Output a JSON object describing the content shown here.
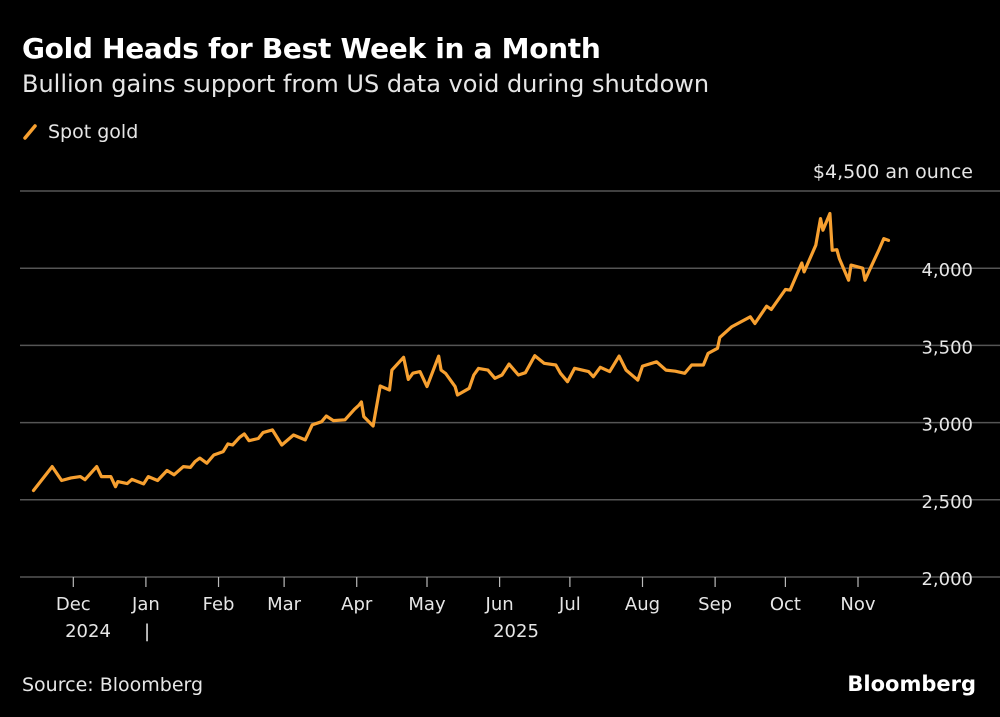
{
  "title": "Gold Heads for Best Week in a Month",
  "subtitle": "Bullion gains support from US data void during shutdown",
  "source": "Source: Bloomberg",
  "brand": "Bloomberg",
  "colors": {
    "line": "#f7a030",
    "grid": "#555555",
    "background": "#000000"
  },
  "chart_data": {
    "type": "line",
    "title": "Gold Heads for Best Week in a Month",
    "subtitle": "Bullion gains support from US data void during shutdown",
    "unit_label": "$4,500 an ounce",
    "ylim": [
      2000,
      4500
    ],
    "yticks": [
      2000,
      2500,
      3000,
      3500,
      4000,
      4500
    ],
    "ytick_labels": [
      "2,000",
      "2,500",
      "3,000",
      "3,500",
      "4,000",
      "$4,500 an ounce"
    ],
    "y_axis_position": "right",
    "grid": true,
    "legend": {
      "position": "top-left",
      "entries": [
        "Spot gold"
      ]
    },
    "xtick_dates": [
      "2024-12-01",
      "2025-01-01",
      "2025-02-01",
      "2025-03-01",
      "2025-04-01",
      "2025-05-01",
      "2025-06-01",
      "2025-07-01",
      "2025-08-01",
      "2025-09-01",
      "2025-10-01",
      "2025-11-01"
    ],
    "xtick_labels": [
      "Dec",
      "Jan",
      "Feb",
      "Mar",
      "Apr",
      "May",
      "Jun",
      "Jul",
      "Aug",
      "Sep",
      "Oct",
      "Nov"
    ],
    "year_labels": [
      "2024",
      "|",
      "2025"
    ],
    "series": [
      {
        "name": "Spot gold",
        "x": [
          "2024-11-14",
          "2024-11-22",
          "2024-11-26",
          "2024-11-30",
          "2024-12-04",
          "2024-12-06",
          "2024-12-11",
          "2024-12-13",
          "2024-12-17",
          "2024-12-19",
          "2024-12-20",
          "2024-12-24",
          "2024-12-26",
          "2024-12-31",
          "2025-01-02",
          "2025-01-06",
          "2025-01-10",
          "2025-01-13",
          "2025-01-17",
          "2025-01-20",
          "2025-01-22",
          "2025-01-24",
          "2025-01-27",
          "2025-01-30",
          "2025-02-03",
          "2025-02-05",
          "2025-02-07",
          "2025-02-10",
          "2025-02-12",
          "2025-02-14",
          "2025-02-18",
          "2025-02-20",
          "2025-02-24",
          "2025-02-28",
          "2025-03-05",
          "2025-03-10",
          "2025-03-13",
          "2025-03-17",
          "2025-03-19",
          "2025-03-22",
          "2025-03-27",
          "2025-03-31",
          "2025-04-02",
          "2025-04-03",
          "2025-04-04",
          "2025-04-08",
          "2025-04-11",
          "2025-04-15",
          "2025-04-16",
          "2025-04-21",
          "2025-04-23",
          "2025-04-25",
          "2025-04-28",
          "2025-05-01",
          "2025-05-06",
          "2025-05-07",
          "2025-05-09",
          "2025-05-13",
          "2025-05-14",
          "2025-05-19",
          "2025-05-21",
          "2025-05-23",
          "2025-05-27",
          "2025-05-30",
          "2025-06-02",
          "2025-06-05",
          "2025-06-09",
          "2025-06-12",
          "2025-06-16",
          "2025-06-20",
          "2025-06-25",
          "2025-06-27",
          "2025-06-30",
          "2025-07-03",
          "2025-07-09",
          "2025-07-11",
          "2025-07-14",
          "2025-07-18",
          "2025-07-22",
          "2025-07-25",
          "2025-07-30",
          "2025-08-01",
          "2025-08-07",
          "2025-08-11",
          "2025-08-15",
          "2025-08-19",
          "2025-08-22",
          "2025-08-27",
          "2025-08-29",
          "2025-09-02",
          "2025-09-03",
          "2025-09-08",
          "2025-09-16",
          "2025-09-18",
          "2025-09-23",
          "2025-09-25",
          "2025-10-01",
          "2025-10-03",
          "2025-10-08",
          "2025-10-09",
          "2025-10-14",
          "2025-10-16",
          "2025-10-17",
          "2025-10-20",
          "2025-10-21",
          "2025-10-23",
          "2025-10-24",
          "2025-10-28",
          "2025-10-29",
          "2025-11-03",
          "2025-11-04",
          "2025-11-06",
          "2025-11-10",
          "2025-11-12",
          "2025-11-14"
        ],
        "y": [
          2560,
          2715,
          2625,
          2642,
          2650,
          2630,
          2715,
          2650,
          2650,
          2585,
          2618,
          2605,
          2632,
          2603,
          2650,
          2625,
          2690,
          2662,
          2715,
          2710,
          2748,
          2770,
          2737,
          2790,
          2812,
          2862,
          2855,
          2905,
          2927,
          2883,
          2897,
          2935,
          2953,
          2855,
          2920,
          2888,
          2985,
          3006,
          3043,
          3013,
          3018,
          3086,
          3114,
          3134,
          3039,
          2978,
          3237,
          3211,
          3340,
          3423,
          3280,
          3320,
          3330,
          3233,
          3431,
          3340,
          3318,
          3233,
          3179,
          3222,
          3308,
          3351,
          3340,
          3287,
          3308,
          3379,
          3308,
          3323,
          3433,
          3384,
          3373,
          3319,
          3265,
          3352,
          3330,
          3297,
          3358,
          3330,
          3431,
          3340,
          3275,
          3366,
          3394,
          3340,
          3333,
          3319,
          3373,
          3373,
          3448,
          3481,
          3552,
          3620,
          3685,
          3642,
          3754,
          3733,
          3862,
          3858,
          4034,
          3976,
          4149,
          4321,
          4246,
          4354,
          4116,
          4120,
          4063,
          3922,
          4020,
          4000,
          3922,
          3990,
          4121,
          4192,
          4180
        ]
      }
    ]
  }
}
